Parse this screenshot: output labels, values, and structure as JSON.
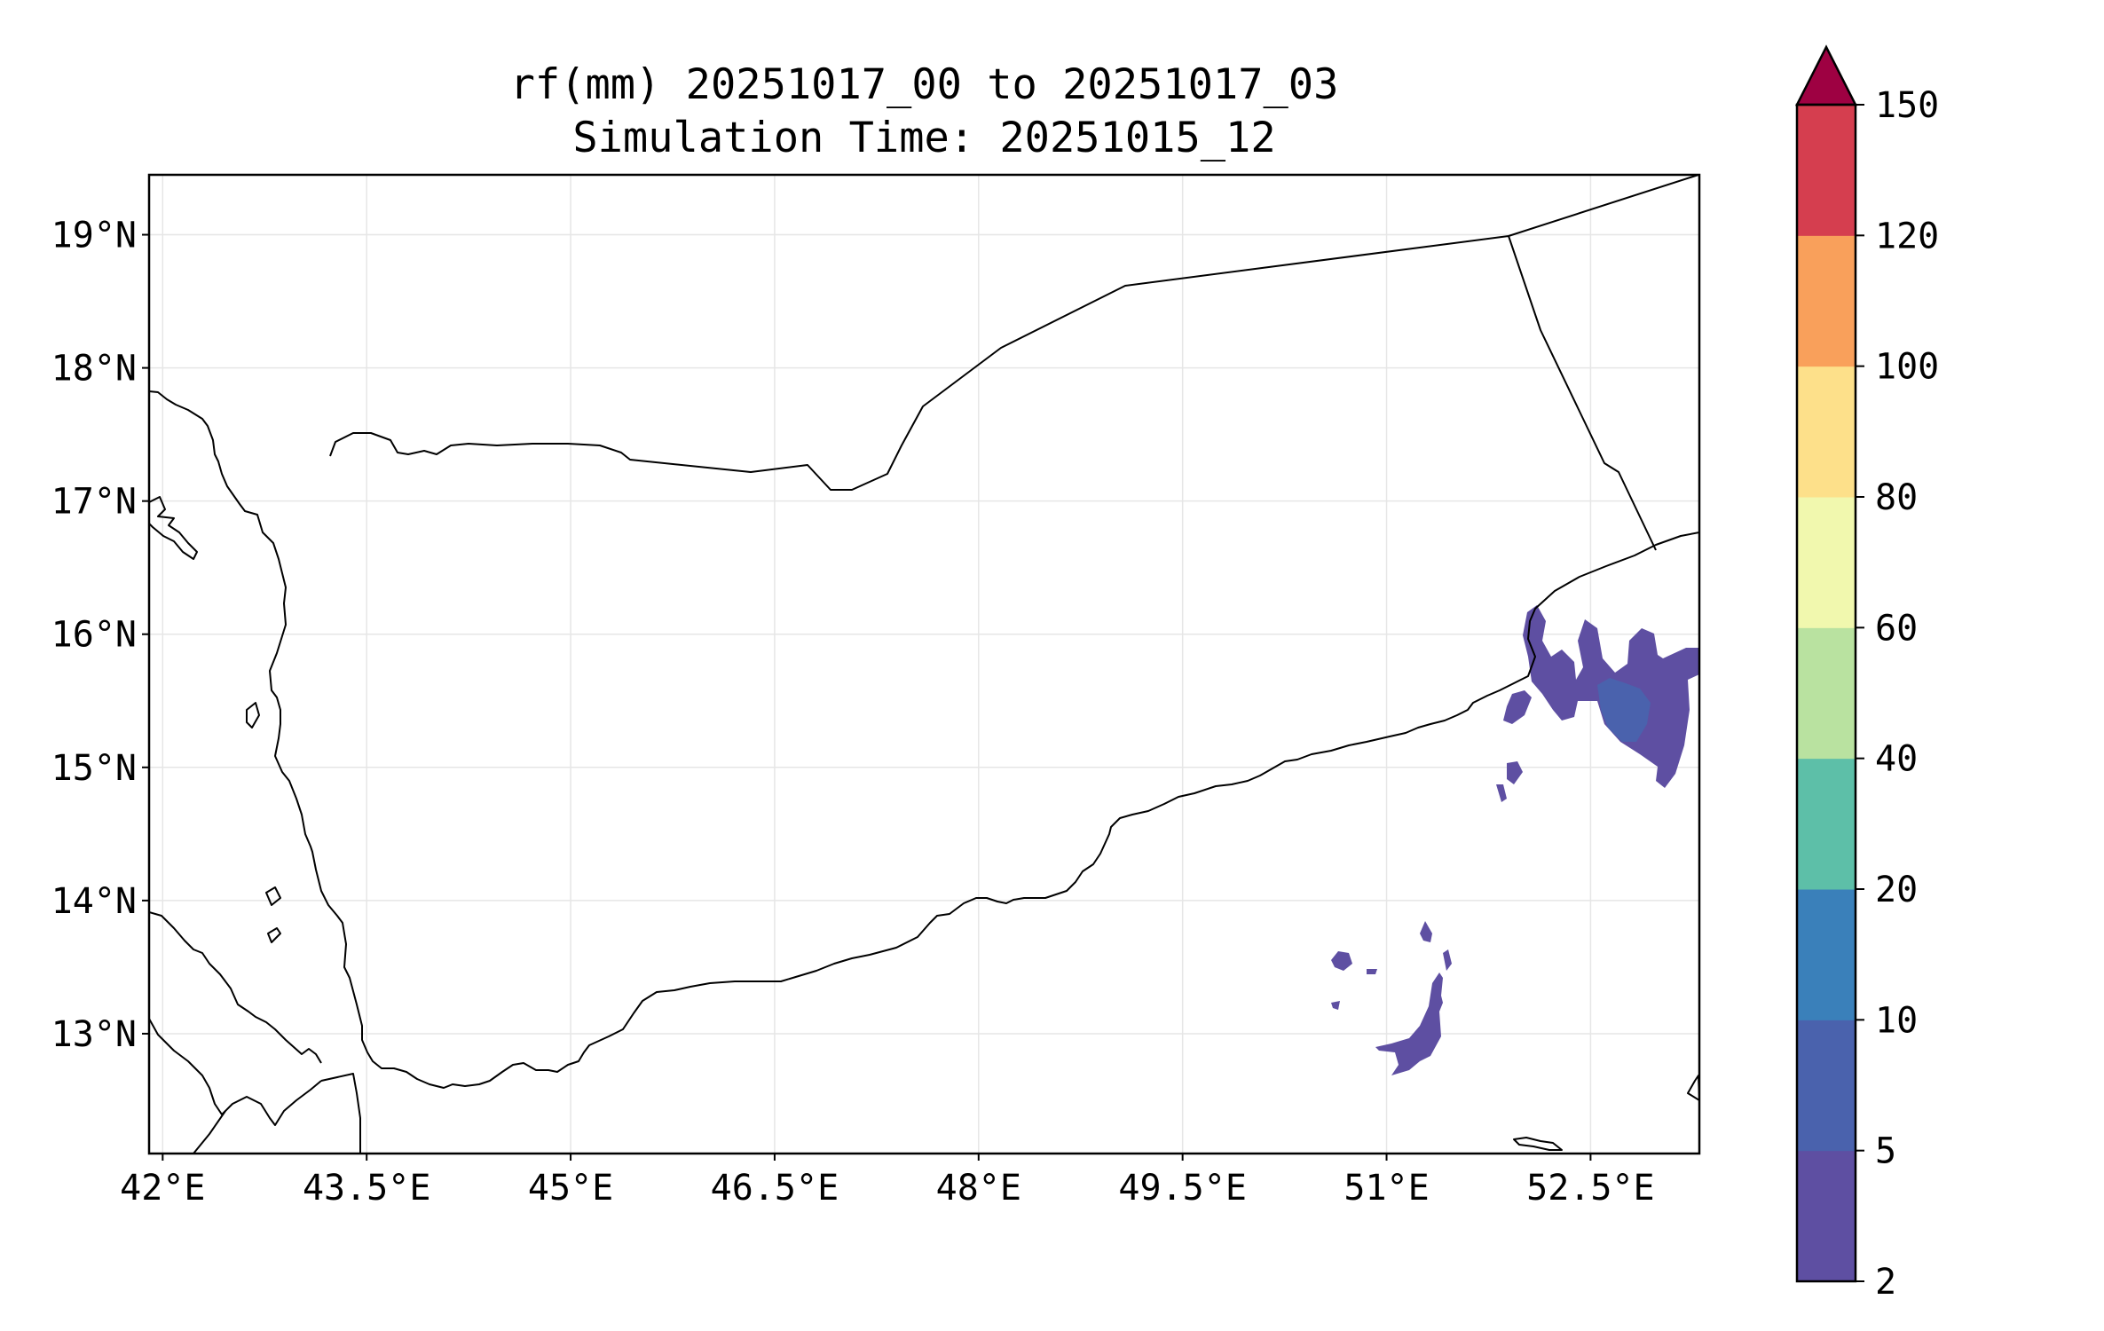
{
  "title": {
    "line1": "rf(mm) 20251017_00 to 20251017_03",
    "line2": "Simulation Time: 20251015_12"
  },
  "map": {
    "lon_range": [
      41.9,
      53.3
    ],
    "lat_range": [
      12.1,
      19.45
    ],
    "x_ticks": [
      "42°E",
      "43.5°E",
      "45°E",
      "46.5°E",
      "48°E",
      "49.5°E",
      "51°E",
      "52.5°E"
    ],
    "y_ticks": [
      "19°N",
      "18°N",
      "17°N",
      "16°N",
      "15°N",
      "14°N",
      "13°N"
    ],
    "gridlines": true
  },
  "colorbar": {
    "levels": [
      "2",
      "5",
      "10",
      "20",
      "40",
      "60",
      "80",
      "100",
      "120",
      "150"
    ],
    "colors": [
      "#5e4fa2",
      "#4a62ad",
      "#3a80ba",
      "#5dbfa8",
      "#b9e2a0",
      "#f1f8ae",
      "#fde08a",
      "#f9a05b",
      "#d53e4f",
      "#9e0142"
    ],
    "extend": "max"
  },
  "chart_data": {
    "type": "heatmap",
    "title": "rf(mm) 20251017_00 to 20251017_03",
    "subtitle": "Simulation Time: 20251015_12",
    "xlabel": "",
    "ylabel": "",
    "xlim": [
      41.9,
      53.3
    ],
    "ylim": [
      12.1,
      19.45
    ],
    "colorbar_levels": [
      2,
      5,
      10,
      20,
      40,
      60,
      80,
      100,
      120,
      150
    ],
    "rain_areas": [
      {
        "region": "northeast coast near 52.5°E 15.5°N",
        "category": "2-5"
      },
      {
        "region": "northeast coast near 52.7°E 15.5°N",
        "category": "5-10"
      },
      {
        "region": "open sea near 51.2°E 13.1°N",
        "category": "2-5"
      },
      {
        "region": "open sea near 50.7°E 13.5°N",
        "category": "2-5"
      }
    ]
  }
}
